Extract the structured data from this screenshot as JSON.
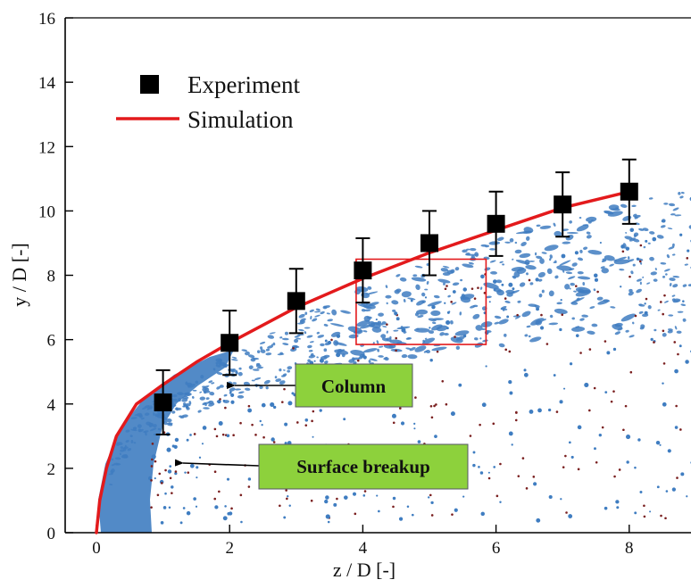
{
  "chart_data": {
    "type": "scatter",
    "xlabel": "z / D [-]",
    "ylabel": "y / D [-]",
    "xlim": [
      -0.6,
      9
    ],
    "ylim": [
      0,
      16
    ],
    "x_ticks": [
      0,
      2,
      4,
      6,
      8
    ],
    "y_ticks": [
      0,
      2,
      4,
      6,
      8,
      10,
      12,
      14,
      16
    ],
    "grid": false,
    "legend_position": "top-left",
    "series": [
      {
        "name": "Experiment",
        "kind": "marker-with-errorbars",
        "color": "#000000",
        "points": [
          {
            "x": 1,
            "y": 4.05,
            "err": 1.0
          },
          {
            "x": 2,
            "y": 5.9,
            "err": 1.0
          },
          {
            "x": 3,
            "y": 7.2,
            "err": 1.0
          },
          {
            "x": 4,
            "y": 8.15,
            "err": 1.0
          },
          {
            "x": 5,
            "y": 9.0,
            "err": 1.0
          },
          {
            "x": 6,
            "y": 9.6,
            "err": 1.0
          },
          {
            "x": 7,
            "y": 10.2,
            "err": 1.0
          },
          {
            "x": 8,
            "y": 10.6,
            "err": 1.0
          }
        ]
      },
      {
        "name": "Simulation",
        "kind": "line",
        "color": "#e31a1c",
        "points": [
          {
            "x": 0.0,
            "y": 0.0
          },
          {
            "x": 0.05,
            "y": 1.0
          },
          {
            "x": 0.15,
            "y": 2.0
          },
          {
            "x": 0.3,
            "y": 3.0
          },
          {
            "x": 0.6,
            "y": 4.0
          },
          {
            "x": 1.0,
            "y": 4.6
          },
          {
            "x": 1.5,
            "y": 5.3
          },
          {
            "x": 2.0,
            "y": 5.9
          },
          {
            "x": 3.0,
            "y": 7.0
          },
          {
            "x": 4.0,
            "y": 7.9
          },
          {
            "x": 5.0,
            "y": 8.7
          },
          {
            "x": 6.0,
            "y": 9.4
          },
          {
            "x": 7.0,
            "y": 10.1
          },
          {
            "x": 8.0,
            "y": 10.6
          }
        ]
      }
    ],
    "highlight_box": {
      "x0": 3.9,
      "x1": 5.85,
      "y0": 5.85,
      "y1": 8.5,
      "color": "#e31a1c"
    },
    "annotations": [
      {
        "text": "Column",
        "box_color": "#8dd13c",
        "arrow_to": {
          "x": 2.0,
          "y": 4.5
        }
      },
      {
        "text": "Surface breakup",
        "box_color": "#8dd13c",
        "arrow_to": {
          "x": 1.2,
          "y": 2.1
        }
      }
    ],
    "spray_color": "#3f7dc1",
    "droplet_color": "#7a1f1f"
  }
}
